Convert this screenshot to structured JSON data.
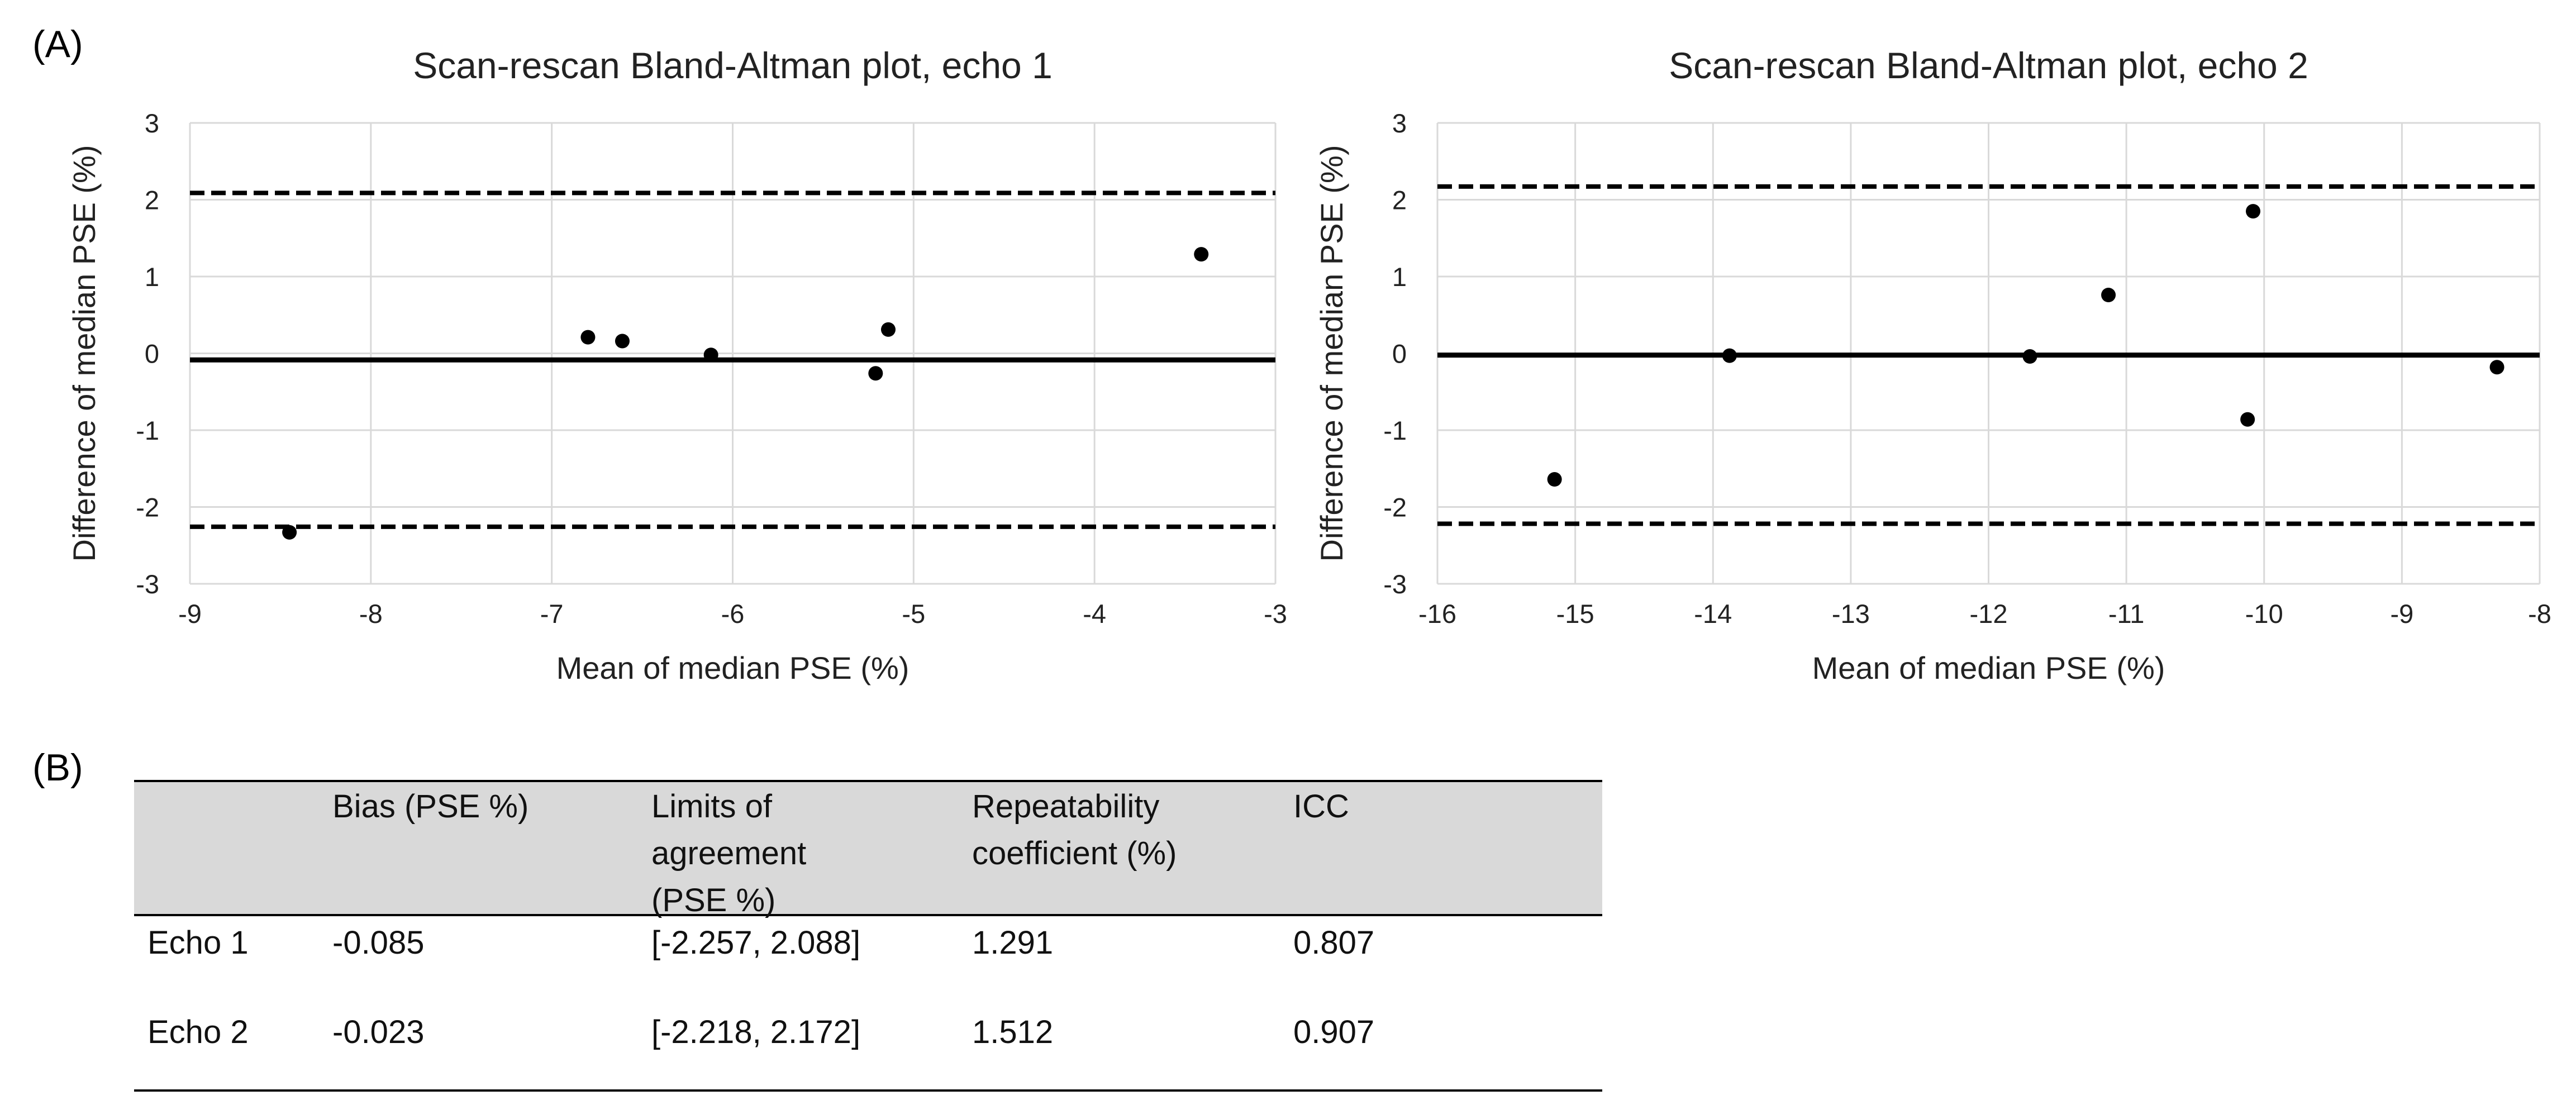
{
  "panel_labels": {
    "a": "(A)",
    "b": "(B)"
  },
  "chart_data": [
    {
      "type": "scatter",
      "title": "Scan-rescan Bland-Altman plot, echo 1",
      "xlabel": "Mean of median PSE (%)",
      "ylabel": "Difference of median PSE (%)",
      "xlim": [
        -9,
        -3
      ],
      "ylim": [
        -3,
        3
      ],
      "xticks": [
        -9,
        -8,
        -7,
        -6,
        -5,
        -4,
        -3
      ],
      "yticks": [
        -3,
        -2,
        -1,
        0,
        1,
        2,
        3
      ],
      "grid": true,
      "points": [
        {
          "x": -8.45,
          "y": -2.33
        },
        {
          "x": -6.8,
          "y": 0.21
        },
        {
          "x": -6.61,
          "y": 0.16
        },
        {
          "x": -6.12,
          "y": -0.02
        },
        {
          "x": -5.21,
          "y": -0.26
        },
        {
          "x": -5.14,
          "y": 0.31
        },
        {
          "x": -3.41,
          "y": 1.29
        }
      ],
      "bias": -0.085,
      "limits_of_agreement": [
        -2.257,
        2.088
      ]
    },
    {
      "type": "scatter",
      "title": "Scan-rescan Bland-Altman plot, echo 2",
      "xlabel": "Mean of median PSE (%)",
      "ylabel": "Difference of median PSE (%)",
      "xlim": [
        -16,
        -8
      ],
      "ylim": [
        -3,
        3
      ],
      "xticks": [
        -16,
        -15,
        -14,
        -13,
        -12,
        -11,
        -10,
        -9,
        -8
      ],
      "yticks": [
        -3,
        -2,
        -1,
        0,
        1,
        2,
        3
      ],
      "grid": true,
      "points": [
        {
          "x": -15.15,
          "y": -1.64
        },
        {
          "x": -13.88,
          "y": -0.03
        },
        {
          "x": -11.7,
          "y": -0.04
        },
        {
          "x": -11.13,
          "y": 0.76
        },
        {
          "x": -10.12,
          "y": -0.86
        },
        {
          "x": -10.08,
          "y": 1.85
        },
        {
          "x": -8.31,
          "y": -0.18
        }
      ],
      "bias": -0.023,
      "limits_of_agreement": [
        -2.218,
        2.172
      ]
    }
  ],
  "table": {
    "headers": [
      "",
      "Bias (PSE %)",
      "Limits of\nagreement\n(PSE %)",
      "Repeatability\ncoefficient (%)",
      "ICC"
    ],
    "rows": [
      [
        "Echo 1",
        "-0.085",
        "[-2.257, 2.088]",
        "1.291",
        "0.807"
      ],
      [
        "Echo 2",
        "-0.023",
        "[-2.218, 2.172]",
        "1.512",
        "0.907"
      ]
    ]
  }
}
